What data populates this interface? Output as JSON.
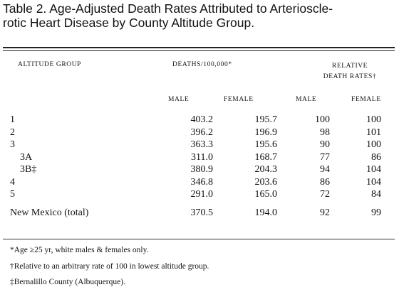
{
  "title": {
    "line1": "Table 2. Age-Adjusted Death Rates Attributed to Arterioscle-",
    "line2": "rotic Heart Disease by County Altitude Group."
  },
  "headers": {
    "altitude": "Altitude Group",
    "deaths": "Deaths/100,000*",
    "relative_line1": "Relative",
    "relative_line2": "Death Rates†",
    "male": "male",
    "female": "female",
    "rel_male": "male",
    "rel_female": "female"
  },
  "rows": [
    {
      "label": "1",
      "male": "403.2",
      "female": "195.7",
      "rel_male": "100",
      "rel_female": "100"
    },
    {
      "label": "2",
      "male": "396.2",
      "female": "196.9",
      "rel_male": "98",
      "rel_female": "101"
    },
    {
      "label": "3",
      "male": "363.3",
      "female": "195.6",
      "rel_male": "90",
      "rel_female": "100"
    },
    {
      "label": "3A",
      "male": "311.0",
      "female": "168.7",
      "rel_male": "77",
      "rel_female": "86"
    },
    {
      "label": "3B‡",
      "male": "380.9",
      "female": "204.3",
      "rel_male": "94",
      "rel_female": "104"
    },
    {
      "label": "4",
      "male": "346.8",
      "female": "203.6",
      "rel_male": "86",
      "rel_female": "104"
    },
    {
      "label": "5",
      "male": "291.0",
      "female": "165.0",
      "rel_male": "72",
      "rel_female": "84"
    }
  ],
  "total": {
    "label": "New Mexico (total)",
    "male": "370.5",
    "female": "194.0",
    "rel_male": "92",
    "rel_female": "99"
  },
  "footnotes": [
    "*Age ≥25 yr, white males & females only.",
    "†Relative to an arbitrary rate of 100 in lowest altitude group.",
    "‡Bernalillo County (Albuquerque)."
  ]
}
